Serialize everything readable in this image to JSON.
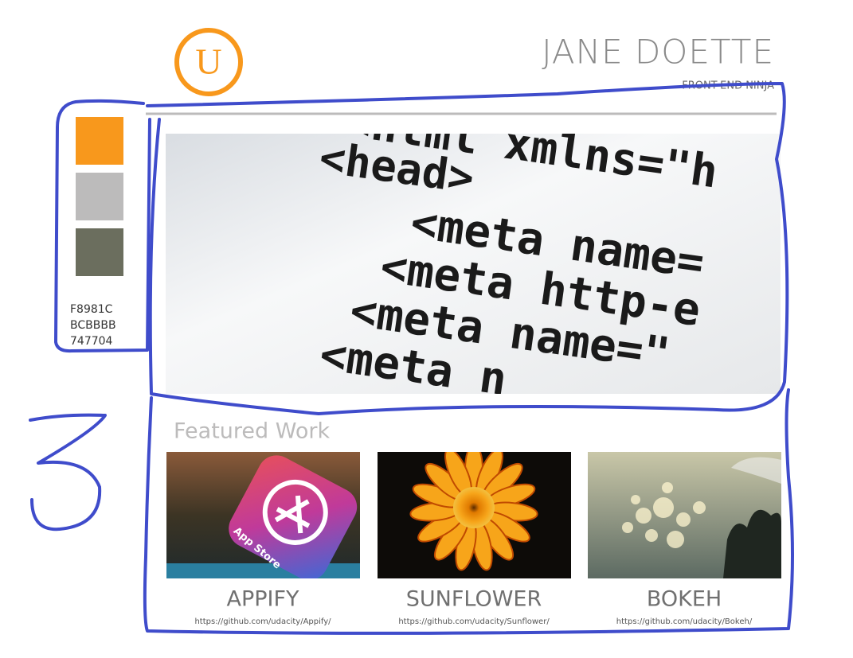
{
  "header": {
    "logo": "U",
    "title": "JANE DOETTE",
    "subtitle": "FRONT-END NINJA"
  },
  "palette": {
    "codes": [
      "F8981C",
      "BCBBBB",
      "747704"
    ]
  },
  "hero": {
    "code_lines": [
      "<html xmlns=\"h",
      "<head>",
      "<meta name=",
      "<meta http-e",
      "<meta name=\"",
      "<meta n"
    ]
  },
  "featured": {
    "heading": "Featured Work",
    "projects": [
      {
        "title": "APPIFY",
        "url": "https://github.com/udacity/Appify/",
        "image_text": "App Store"
      },
      {
        "title": "SUNFLOWER",
        "url": "https://github.com/udacity/Sunflower/"
      },
      {
        "title": "BOKEH",
        "url": "https://github.com/udacity/Bokeh/"
      }
    ]
  }
}
